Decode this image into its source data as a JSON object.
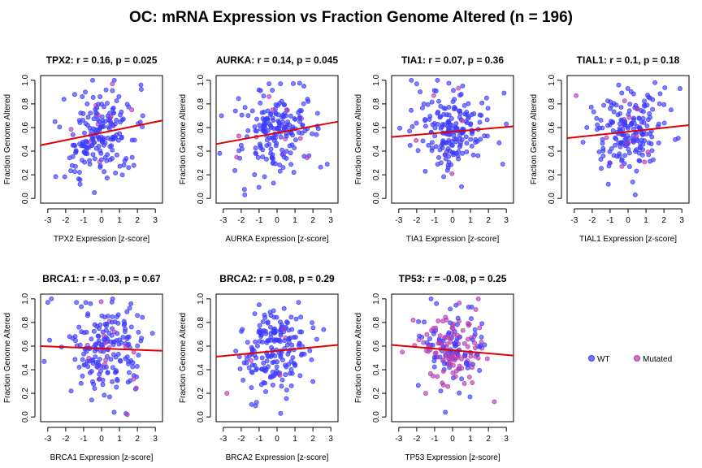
{
  "title": "OC: mRNA Expression vs Fraction Genome Altered (n = 196)",
  "colors": {
    "wt": "#3b3bff",
    "mutated": "#b43cb4",
    "trend": "#e00000"
  },
  "legend": {
    "placement": "right",
    "items": [
      {
        "key": "wt",
        "label": "WT",
        "color": "#3b3bff"
      },
      {
        "key": "mutated",
        "label": "Mutated",
        "color": "#b43cb4"
      }
    ]
  },
  "chart_data": [
    {
      "type": "scatter",
      "title": "TPX2: r = 0.16, p = 0.025",
      "xlabel": "TPX2 Expression [z-score]",
      "ylabel": "Fraction Genome Altered",
      "xlim": [
        -3.4,
        3.4
      ],
      "ylim": [
        -0.04,
        1.04
      ],
      "xticks": [
        -3,
        -2,
        -1,
        0,
        1,
        2,
        3
      ],
      "yticks": [
        0.0,
        0.2,
        0.4,
        0.6,
        0.8,
        1.0
      ],
      "trend": {
        "x": [
          -3.4,
          3.4
        ],
        "y": [
          0.45,
          0.66
        ]
      },
      "n": 196,
      "seed": 11,
      "mutated_fraction": 0.04,
      "points": [
        [
          -2.6,
          0.65
        ],
        [
          -1.6,
          0.45
        ],
        [
          -0.5,
          1.0
        ],
        [
          -1.2,
          0.12
        ],
        [
          -1.5,
          0.88
        ],
        [
          1.8,
          0.28
        ],
        [
          -2.1,
          0.84
        ],
        [
          2.3,
          0.7
        ],
        [
          -0.4,
          0.05
        ],
        [
          0.6,
          0.97
        ]
      ]
    },
    {
      "type": "scatter",
      "title": "AURKA: r = 0.14, p = 0.045",
      "xlabel": "AURKA Expression [z-score]",
      "ylabel": "Fraction Genome Altered",
      "xlim": [
        -3.4,
        3.4
      ],
      "ylim": [
        -0.04,
        1.04
      ],
      "xticks": [
        -3,
        -2,
        -1,
        0,
        1,
        2,
        3
      ],
      "yticks": [
        0.0,
        0.2,
        0.4,
        0.6,
        0.8,
        1.0
      ],
      "trend": {
        "x": [
          -3.4,
          3.4
        ],
        "y": [
          0.46,
          0.65
        ]
      },
      "n": 196,
      "seed": 23,
      "mutated_fraction": 0.05,
      "points": [
        [
          -3.1,
          0.7
        ],
        [
          -1.8,
          0.03
        ],
        [
          2.8,
          0.29
        ],
        [
          1.7,
          0.84
        ],
        [
          1.5,
          0.95
        ],
        [
          -0.2,
          0.13
        ],
        [
          2.2,
          0.54
        ],
        [
          -2.0,
          0.45
        ]
      ]
    },
    {
      "type": "scatter",
      "title": "TIA1: r = 0.07, p = 0.36",
      "xlabel": "TIA1 Expression [z-score]",
      "ylabel": "Fraction Genome Altered",
      "xlim": [
        -3.4,
        3.4
      ],
      "ylim": [
        -0.04,
        1.04
      ],
      "xticks": [
        -3,
        -2,
        -1,
        0,
        1,
        2,
        3
      ],
      "yticks": [
        0.0,
        0.2,
        0.4,
        0.6,
        0.8,
        1.0
      ],
      "trend": {
        "x": [
          -3.4,
          3.4
        ],
        "y": [
          0.52,
          0.61
        ]
      },
      "n": 196,
      "seed": 37,
      "mutated_fraction": 0.05,
      "points": [
        [
          -2.3,
          1.0
        ],
        [
          -2.0,
          0.97
        ],
        [
          3.0,
          0.63
        ],
        [
          -2.4,
          0.57
        ],
        [
          2.6,
          0.47
        ],
        [
          0.5,
          0.1
        ],
        [
          1.9,
          0.85
        ],
        [
          -1.6,
          0.8
        ],
        [
          2.8,
          0.29
        ]
      ]
    },
    {
      "type": "scatter",
      "title": "TIAL1: r = 0.1, p = 0.18",
      "xlabel": "TIAL1 Expression [z-score]",
      "ylabel": "Fraction Genome Altered",
      "xlim": [
        -3.4,
        3.4
      ],
      "ylim": [
        -0.04,
        1.04
      ],
      "xticks": [
        -3,
        -2,
        -1,
        0,
        1,
        2,
        3
      ],
      "yticks": [
        0.0,
        0.2,
        0.4,
        0.6,
        0.8,
        1.0
      ],
      "trend": {
        "x": [
          -3.4,
          3.4
        ],
        "y": [
          0.51,
          0.62
        ]
      },
      "n": 196,
      "seed": 51,
      "mutated_fraction": 0.06,
      "points": [
        [
          -2.9,
          0.87
        ],
        [
          0.4,
          0.03
        ],
        [
          -1.1,
          0.12
        ],
        [
          1.5,
          0.98
        ],
        [
          2.9,
          0.93
        ],
        [
          2.8,
          0.51
        ],
        [
          -2.3,
          0.6
        ],
        [
          2.4,
          0.75
        ]
      ]
    },
    {
      "type": "scatter",
      "title": "BRCA1: r = -0.03, p = 0.67",
      "xlabel": "BRCA1 Expression [z-score]",
      "ylabel": "Fraction Genome Altered",
      "xlim": [
        -3.4,
        3.4
      ],
      "ylim": [
        -0.04,
        1.04
      ],
      "xticks": [
        -3,
        -2,
        -1,
        0,
        1,
        2,
        3
      ],
      "yticks": [
        0.0,
        0.2,
        0.4,
        0.6,
        0.8,
        1.0
      ],
      "trend": {
        "x": [
          -3.4,
          3.4
        ],
        "y": [
          0.6,
          0.56
        ]
      },
      "n": 196,
      "seed": 67,
      "mutated_fraction": 0.06,
      "points": [
        [
          -2.8,
          1.0
        ],
        [
          -3.0,
          0.97
        ],
        [
          -1.4,
          0.97
        ],
        [
          -2.9,
          0.65
        ],
        [
          -3.2,
          0.47
        ],
        [
          0.7,
          0.04
        ],
        [
          2.0,
          0.86
        ],
        [
          -1.7,
          0.22
        ],
        [
          1.5,
          0.45
        ]
      ]
    },
    {
      "type": "scatter",
      "title": "BRCA2: r = 0.08, p = 0.29",
      "xlabel": "BRCA2 Expression [z-score]",
      "ylabel": "Fraction Genome Altered",
      "xlim": [
        -3.4,
        3.4
      ],
      "ylim": [
        -0.04,
        1.04
      ],
      "xticks": [
        -3,
        -2,
        -1,
        0,
        1,
        2,
        3
      ],
      "yticks": [
        0.0,
        0.2,
        0.4,
        0.6,
        0.8,
        1.0
      ],
      "trend": {
        "x": [
          -3.4,
          3.4
        ],
        "y": [
          0.51,
          0.61
        ]
      },
      "n": 196,
      "seed": 79,
      "mutated_fraction": 0.05,
      "points": [
        [
          -2.8,
          0.2
        ],
        [
          2.6,
          0.74
        ],
        [
          -2.1,
          0.51
        ],
        [
          0.2,
          0.03
        ],
        [
          1.2,
          0.97
        ],
        [
          -1.0,
          0.95
        ],
        [
          2.0,
          0.3
        ]
      ]
    },
    {
      "type": "scatter",
      "title": "TP53: r = -0.08, p = 0.25",
      "xlabel": "TP53 Expression [z-score]",
      "ylabel": "Fraction Genome Altered",
      "xlim": [
        -3.4,
        3.4
      ],
      "ylim": [
        -0.04,
        1.04
      ],
      "xticks": [
        -3,
        -2,
        -1,
        0,
        1,
        2,
        3
      ],
      "yticks": [
        0.0,
        0.2,
        0.4,
        0.6,
        0.8,
        1.0
      ],
      "trend": {
        "x": [
          -3.4,
          3.4
        ],
        "y": [
          0.61,
          0.52
        ]
      },
      "n": 196,
      "seed": 97,
      "mutated_fraction": 0.6,
      "points": [
        [
          -1.2,
          1.0
        ],
        [
          -0.9,
          0.96
        ],
        [
          0.9,
          0.93
        ],
        [
          1.3,
          0.91
        ],
        [
          -2.2,
          0.82
        ],
        [
          -0.4,
          0.04
        ],
        [
          -1.5,
          0.2
        ],
        [
          1.1,
          0.29
        ]
      ]
    }
  ]
}
